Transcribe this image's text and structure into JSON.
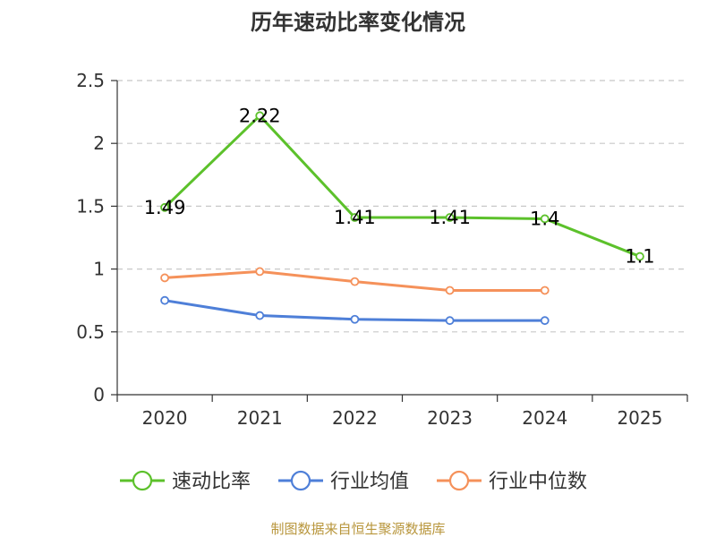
{
  "chart_data": {
    "type": "line",
    "title": "历年速动比率变化情况",
    "categories": [
      "2020",
      "2021",
      "2022",
      "2023",
      "2024",
      "2025"
    ],
    "y_ticks": [
      "0",
      "0.5",
      "1",
      "1.5",
      "2",
      "2.5"
    ],
    "ylim": [
      0,
      2.5
    ],
    "grid": true,
    "legend_position": "bottom",
    "series": [
      {
        "name": "速动比率",
        "color": "#5cc12b",
        "values": [
          1.49,
          2.22,
          1.41,
          1.41,
          1.4,
          1.1
        ],
        "labels": [
          "1.49",
          "2.22",
          "1.41",
          "1.41",
          "1.4",
          "1.1"
        ]
      },
      {
        "name": "行业均值",
        "color": "#4e7fd8",
        "values": [
          0.75,
          0.63,
          0.6,
          0.59,
          0.59,
          null
        ]
      },
      {
        "name": "行业中位数",
        "color": "#f5915a",
        "values": [
          0.93,
          0.98,
          0.9,
          0.83,
          0.83,
          null
        ]
      }
    ]
  },
  "source_text": "制图数据来自恒生聚源数据库"
}
